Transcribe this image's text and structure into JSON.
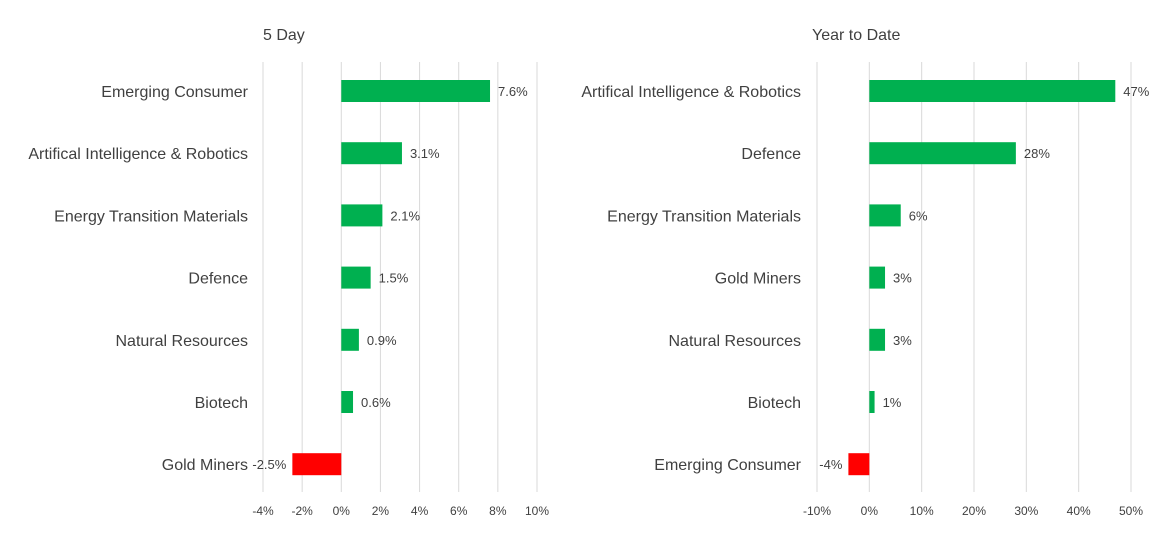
{
  "chart_data": [
    {
      "type": "bar",
      "orientation": "horizontal",
      "title": "5 Day",
      "categories": [
        "Emerging Consumer",
        "Artifical Intelligence & Robotics",
        "Energy Transition Materials",
        "Defence",
        "Natural Resources",
        "Biotech",
        "Gold Miners"
      ],
      "values": [
        7.6,
        3.1,
        2.1,
        1.5,
        0.9,
        0.6,
        -2.5
      ],
      "value_labels": [
        "7.6%",
        "3.1%",
        "2.1%",
        "1.5%",
        "0.9%",
        "0.6%",
        "-2.5%"
      ],
      "xlim": [
        -4,
        10
      ],
      "xticks": [
        -4,
        -2,
        0,
        2,
        4,
        6,
        8,
        10
      ],
      "xtick_labels": [
        "-4%",
        "-2%",
        "0%",
        "2%",
        "4%",
        "6%",
        "8%",
        "10%"
      ],
      "grid": true,
      "positive_color": "#00b050",
      "negative_color": "#ff0000"
    },
    {
      "type": "bar",
      "orientation": "horizontal",
      "title": "Year to Date",
      "categories": [
        "Artifical Intelligence & Robotics",
        "Defence",
        "Energy Transition Materials",
        "Gold Miners",
        "Natural Resources",
        "Biotech",
        "Emerging Consumer"
      ],
      "values": [
        47,
        28,
        6,
        3,
        3,
        1,
        -4
      ],
      "value_labels": [
        "47%",
        "28%",
        "6%",
        "3%",
        "3%",
        "1%",
        "-4%"
      ],
      "xlim": [
        -10,
        50
      ],
      "xticks": [
        -10,
        0,
        10,
        20,
        30,
        40,
        50
      ],
      "xtick_labels": [
        "-10%",
        "0%",
        "10%",
        "20%",
        "30%",
        "40%",
        "50%"
      ],
      "grid": true,
      "positive_color": "#00b050",
      "negative_color": "#ff0000"
    }
  ]
}
